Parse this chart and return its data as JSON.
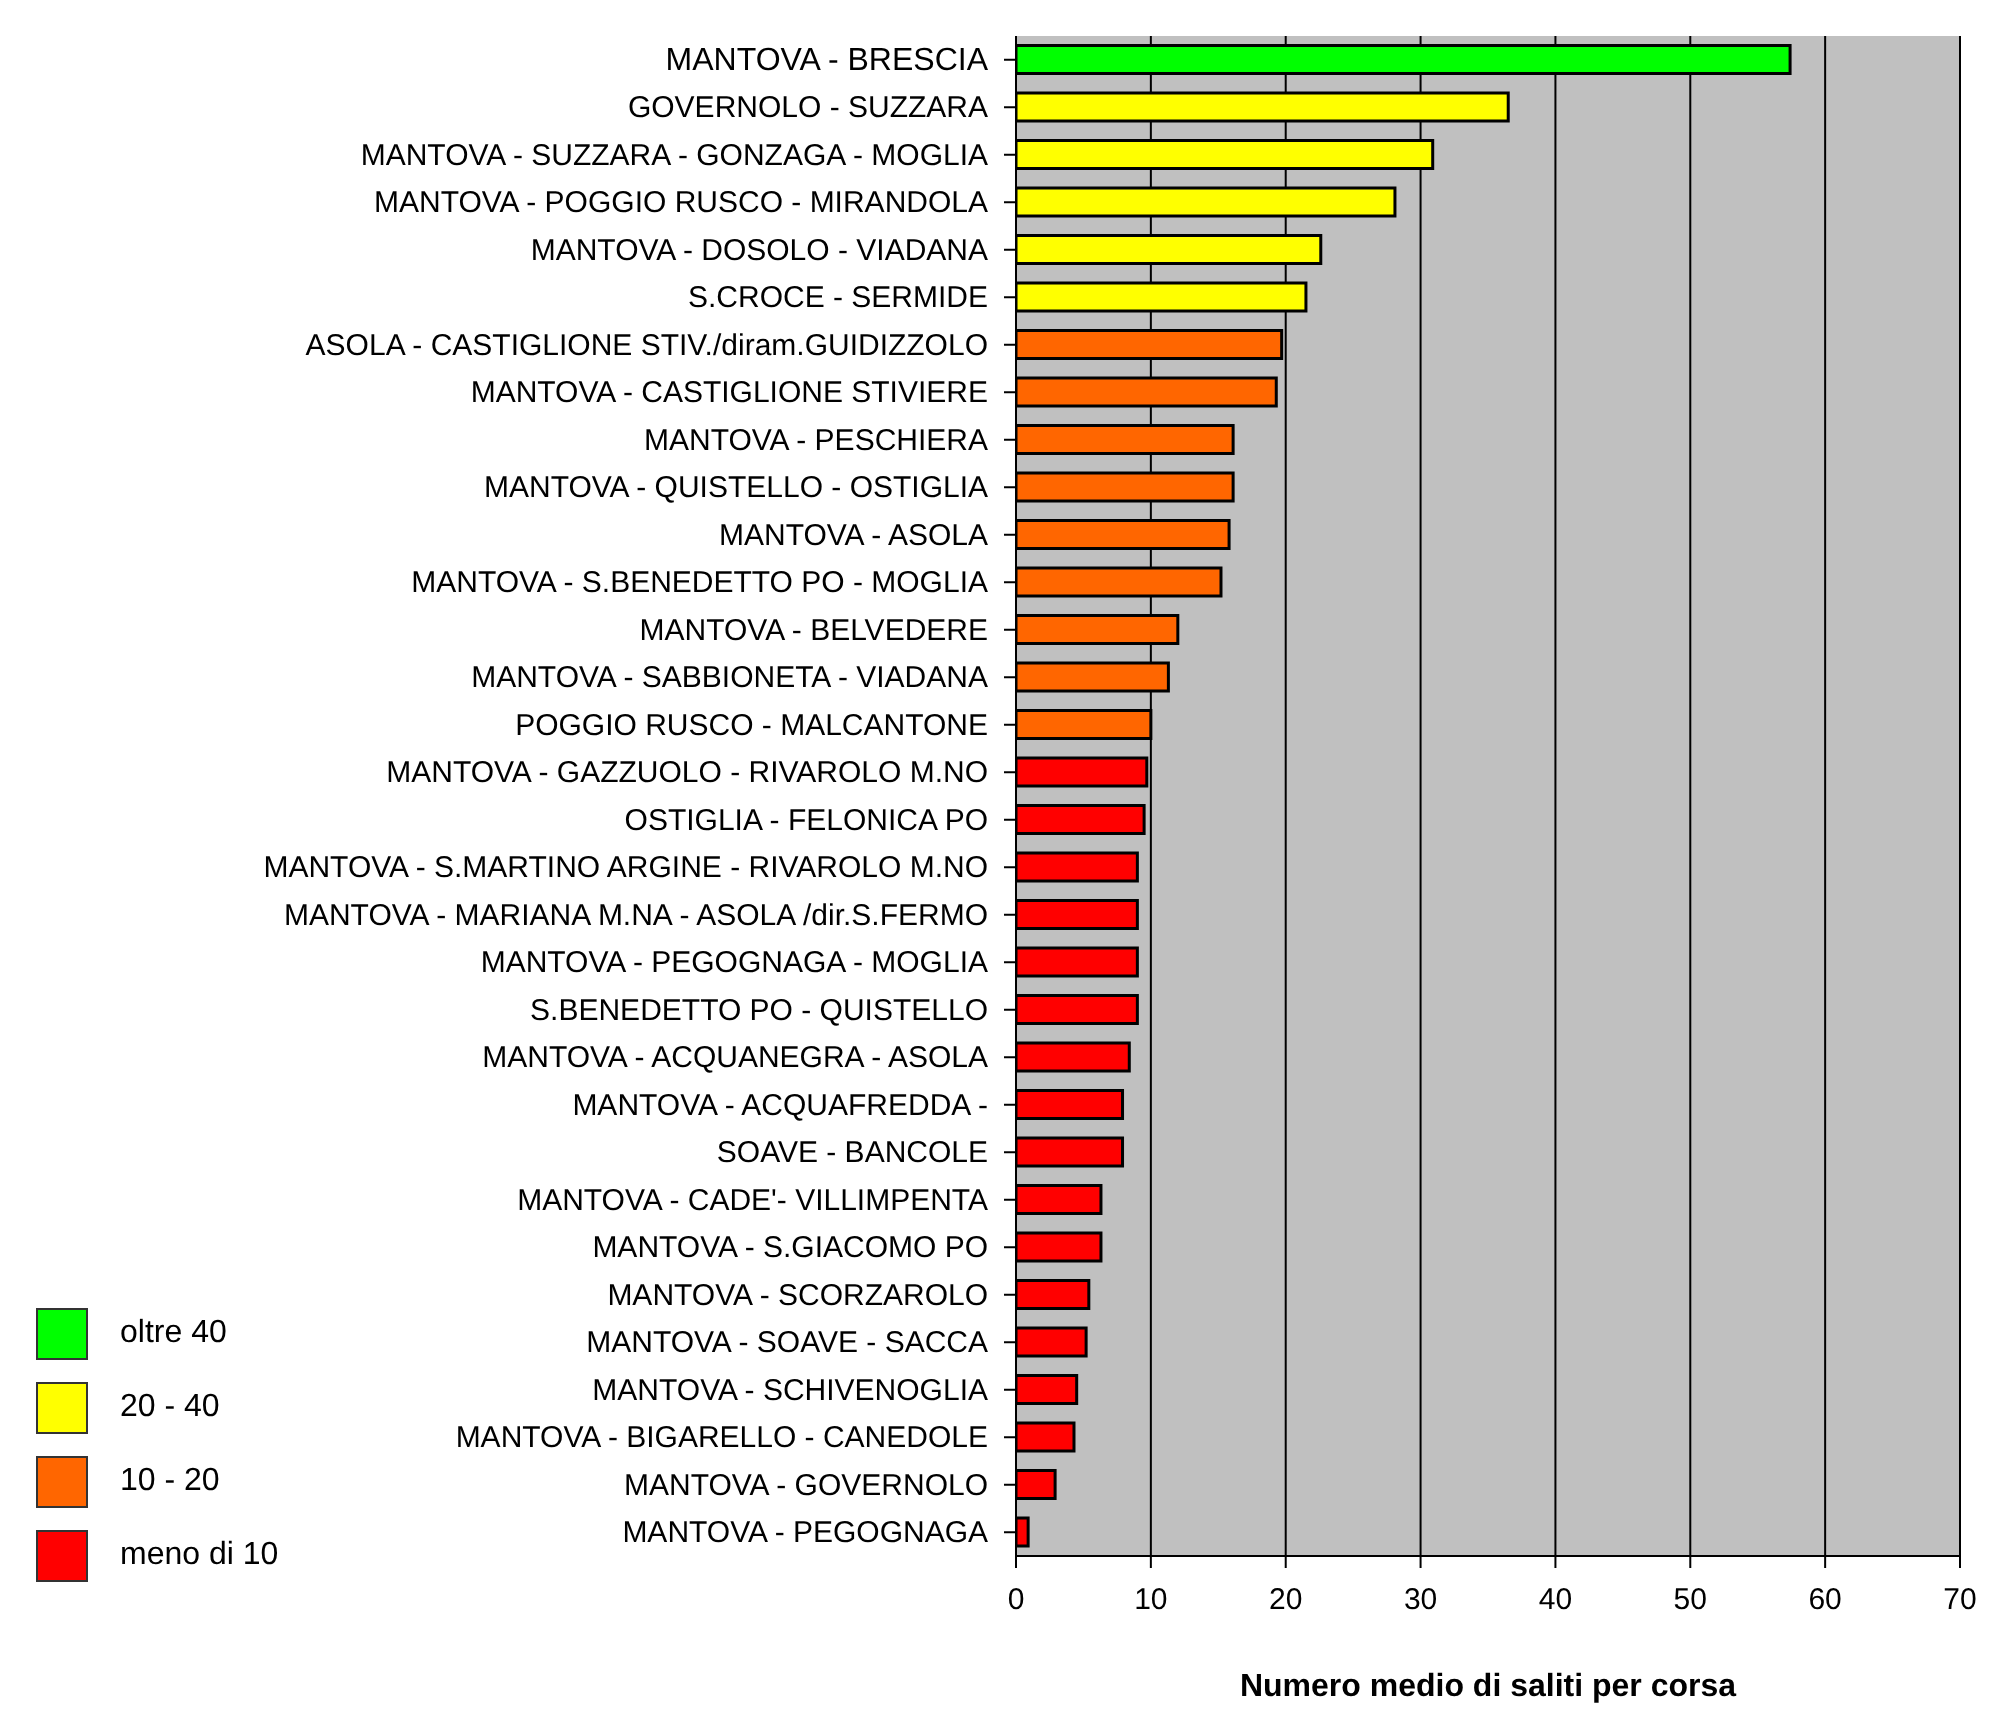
{
  "chart_data": {
    "type": "bar",
    "orientation": "horizontal",
    "stacked": true,
    "xlabel": "Numero medio di saliti per corsa",
    "categories": [
      "MANTOVA - BRESCIA",
      "GOVERNOLO - SUZZARA",
      "MANTOVA - SUZZARA - GONZAGA - MOGLIA",
      "MANTOVA - POGGIO RUSCO - MIRANDOLA",
      "MANTOVA - DOSOLO - VIADANA",
      "S.CROCE - SERMIDE",
      "ASOLA - CASTIGLIONE STIV./diram.GUIDIZZOLO",
      "MANTOVA - CASTIGLIONE STIVIERE",
      "MANTOVA - PESCHIERA",
      "MANTOVA - QUISTELLO - OSTIGLIA",
      "MANTOVA - ASOLA",
      "MANTOVA - S.BENEDETTO PO - MOGLIA",
      "MANTOVA - BELVEDERE",
      "MANTOVA - SABBIONETA - VIADANA",
      "POGGIO RUSCO - MALCANTONE",
      "MANTOVA - GAZZUOLO - RIVAROLO M.NO",
      "OSTIGLIA - FELONICA PO",
      "MANTOVA - S.MARTINO ARGINE - RIVAROLO M.NO",
      "MANTOVA - MARIANA M.NA - ASOLA /dir.S.FERMO",
      "MANTOVA - PEGOGNAGA - MOGLIA",
      "S.BENEDETTO PO - QUISTELLO",
      "MANTOVA - ACQUANEGRA - ASOLA",
      "MANTOVA - ACQUAFREDDA -",
      "SOAVE - BANCOLE",
      "MANTOVA - CADE'- VILLIMPENTA",
      "MANTOVA - S.GIACOMO PO",
      "MANTOVA - SCORZAROLO",
      "MANTOVA - SOAVE - SACCA",
      "MANTOVA - SCHIVENOGLIA",
      "MANTOVA - BIGARELLO - CANEDOLE",
      "MANTOVA - GOVERNOLO",
      "MANTOVA - PEGOGNAGA"
    ],
    "series": [
      {
        "name": "oltre 40",
        "color": "#00ff00",
        "values": [
          57.4,
          null,
          null,
          null,
          null,
          null,
          null,
          null,
          null,
          null,
          null,
          null,
          null,
          null,
          null,
          null,
          null,
          null,
          null,
          null,
          null,
          null,
          null,
          null,
          null,
          null,
          null,
          null,
          null,
          null,
          null,
          null
        ]
      },
      {
        "name": "20 - 40",
        "color": "#ffff00",
        "values": [
          null,
          36.5,
          30.9,
          28.1,
          22.6,
          21.5,
          null,
          null,
          null,
          null,
          null,
          null,
          null,
          null,
          null,
          null,
          null,
          null,
          null,
          null,
          null,
          null,
          null,
          null,
          null,
          null,
          null,
          null,
          null,
          null,
          null,
          null
        ]
      },
      {
        "name": "10 - 20",
        "color": "#ff6600",
        "values": [
          null,
          null,
          null,
          null,
          null,
          null,
          19.7,
          19.3,
          16.1,
          16.1,
          15.8,
          15.2,
          12.0,
          11.3,
          10.0,
          null,
          null,
          null,
          null,
          null,
          null,
          null,
          null,
          null,
          null,
          null,
          null,
          null,
          null,
          null,
          null,
          null
        ]
      },
      {
        "name": "meno di 10",
        "color": "#ff0000",
        "values": [
          null,
          null,
          null,
          null,
          null,
          null,
          null,
          null,
          null,
          null,
          null,
          null,
          null,
          null,
          null,
          9.7,
          9.5,
          9.0,
          9.0,
          9.0,
          9.0,
          8.4,
          7.9,
          7.9,
          6.3,
          6.3,
          5.4,
          5.2,
          4.5,
          4.3,
          2.9,
          0.9
        ]
      }
    ],
    "xlim": [
      0,
      70
    ],
    "xticks": [
      0,
      10,
      20,
      30,
      40,
      50,
      60,
      70
    ],
    "grid": "x",
    "legend": "bottom left"
  }
}
